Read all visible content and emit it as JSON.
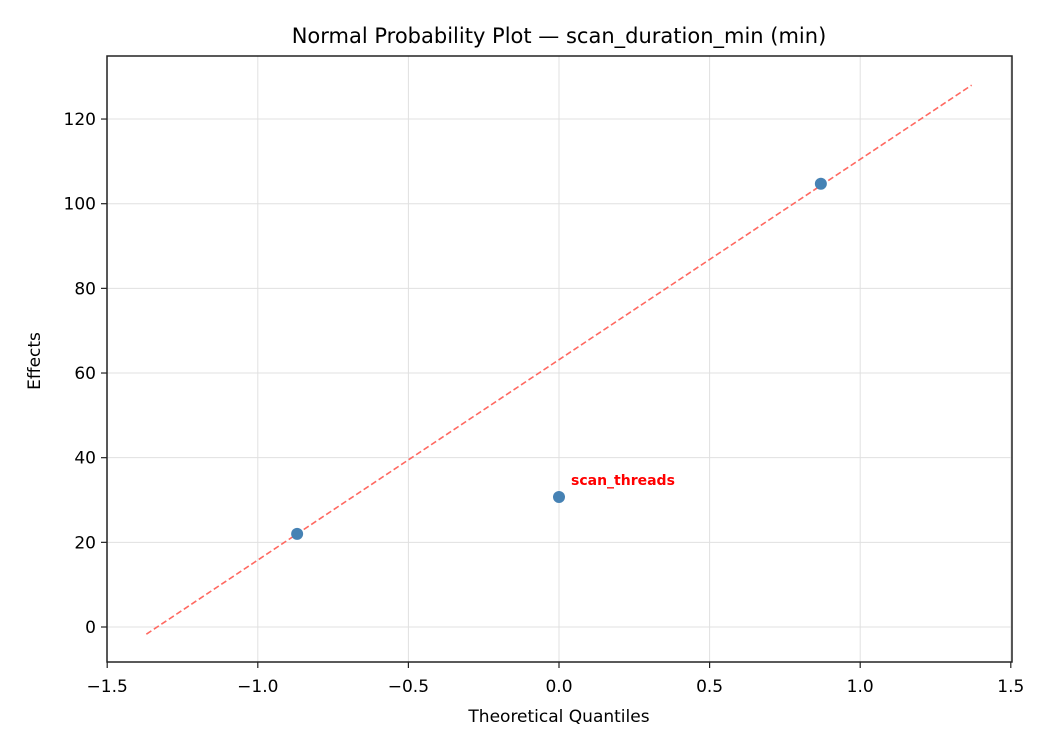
{
  "chart_data": {
    "type": "scatter",
    "title": "Normal Probability Plot — scan_duration_min (min)",
    "xlabel": "Theoretical Quantiles",
    "ylabel": "Effects",
    "xlim": [
      -1.5,
      1.5
    ],
    "ylim": [
      -8.5,
      135
    ],
    "xticks": [
      -1.5,
      -1.0,
      -0.5,
      0.0,
      0.5,
      1.0,
      1.5
    ],
    "xtick_labels": [
      "−1.5",
      "−1.0",
      "−0.5",
      "0.0",
      "0.5",
      "1.0",
      "1.5"
    ],
    "yticks": [
      0,
      20,
      40,
      60,
      80,
      100,
      120
    ],
    "ytick_labels": [
      "0",
      "20",
      "40",
      "60",
      "80",
      "100",
      "120"
    ],
    "grid": true,
    "series": [
      {
        "name": "effects",
        "color": "#4682b4",
        "x": [
          -0.8694,
          0.0,
          0.8694
        ],
        "y": [
          22.0,
          30.7,
          104.7
        ]
      }
    ],
    "reference_line": {
      "style": "dashed",
      "color": "#ff6961",
      "x": [
        -1.37,
        1.37
      ],
      "y": [
        -1.7,
        128.0
      ]
    },
    "annotations": [
      {
        "text": "scan_threads",
        "x": 0.0,
        "y": 30.7,
        "color": "#ff0000"
      }
    ]
  }
}
